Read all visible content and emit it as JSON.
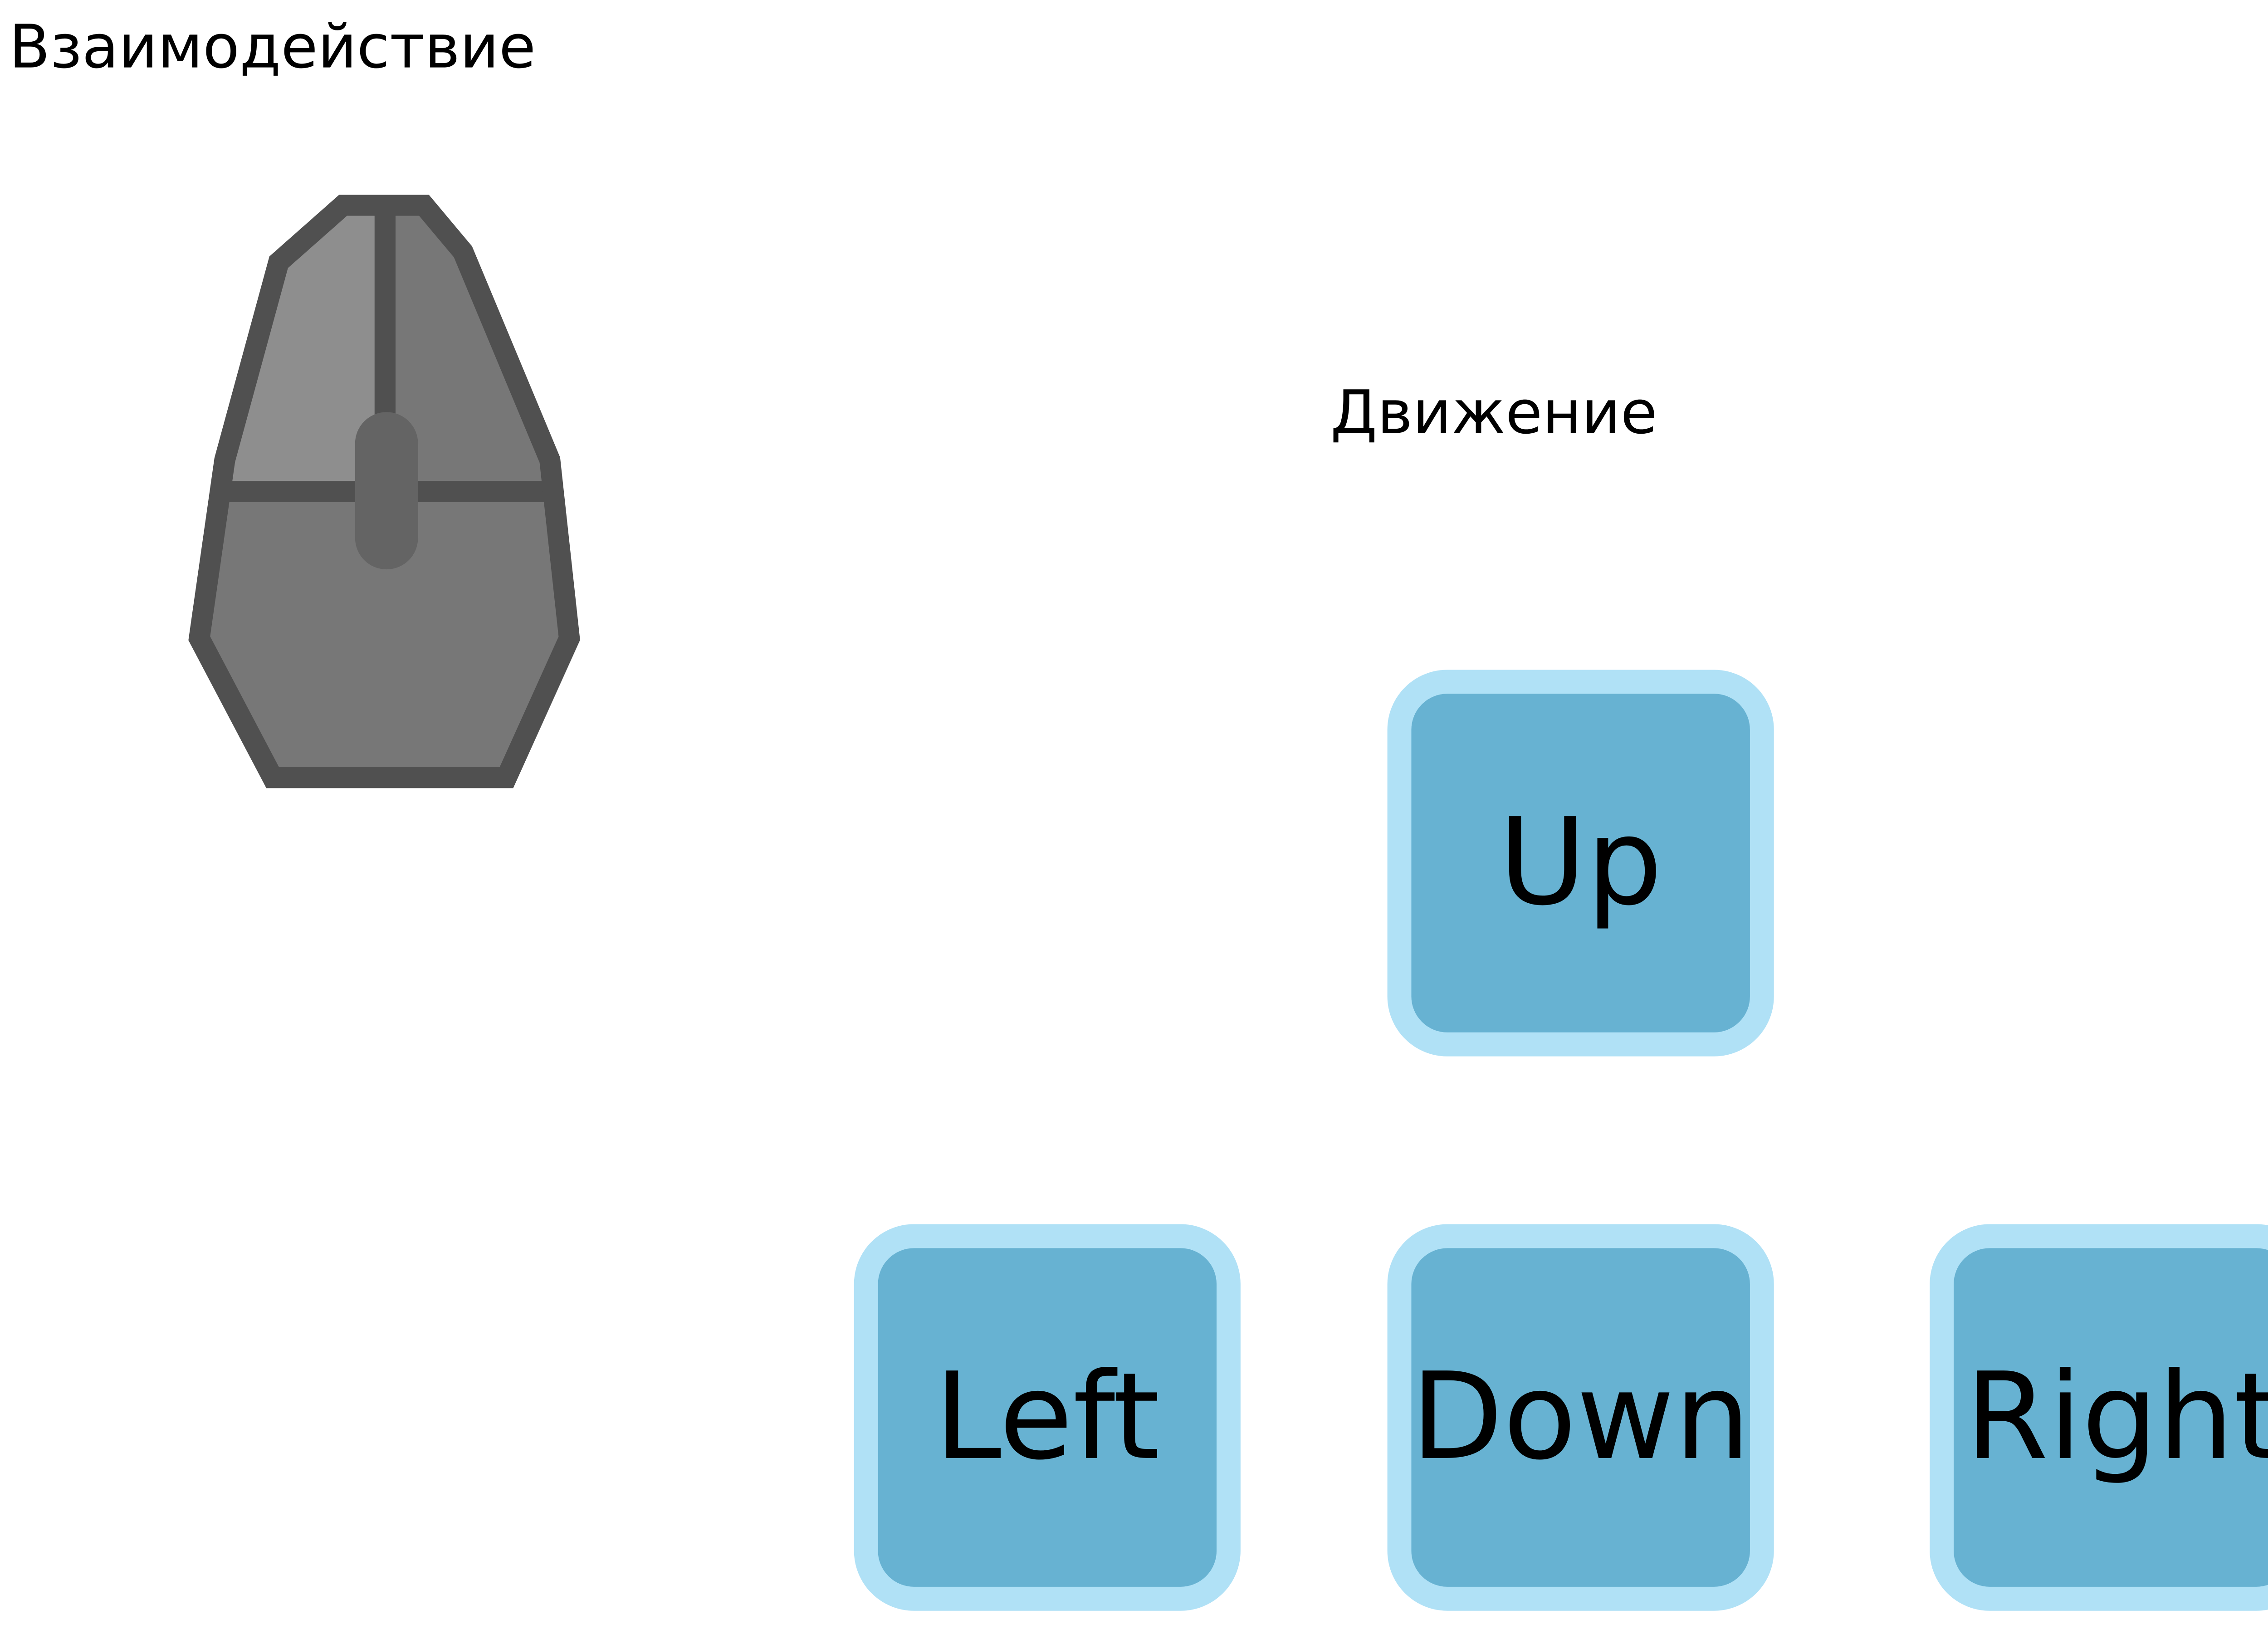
{
  "title": "Взаимодействие",
  "movement": {
    "title": "Движение",
    "keys": {
      "up": "Up",
      "left": "Left",
      "down": "Down",
      "right": "Right"
    }
  },
  "icons": {
    "mouse": "computer-mouse-icon"
  },
  "colors": {
    "key_fill": "#67b2d2",
    "key_border": "#b0e1f6",
    "mouse_body": "#777777",
    "mouse_left_button": "#8e8e8e",
    "mouse_outline": "#505050",
    "mouse_wheel": "#646464"
  }
}
